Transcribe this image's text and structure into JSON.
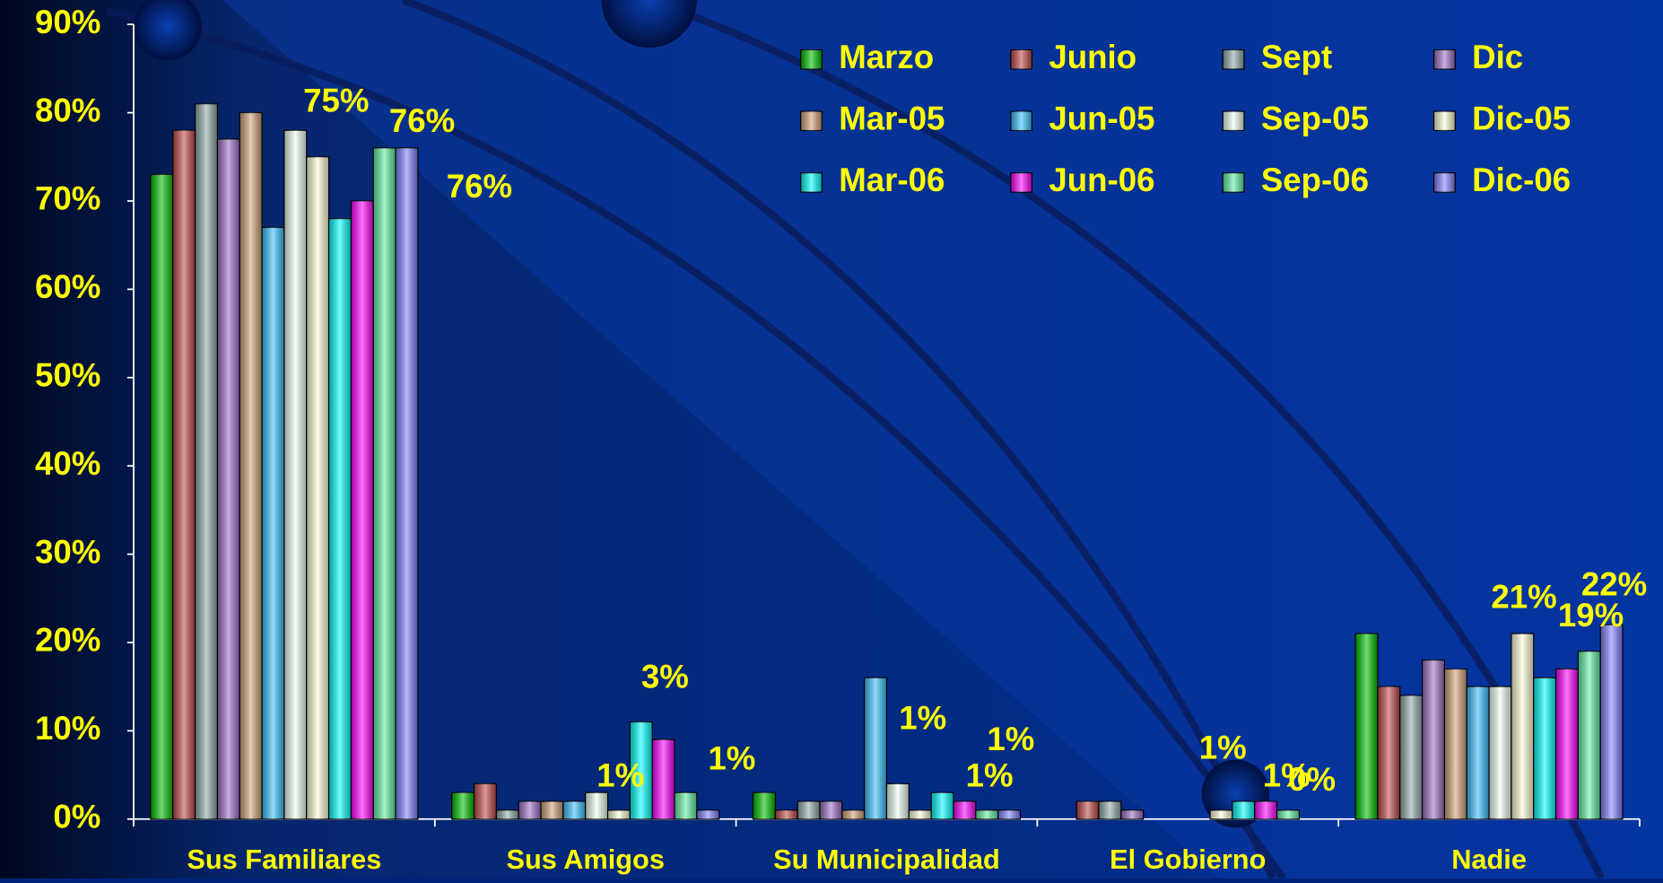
{
  "chart_data": {
    "type": "bar",
    "categories": [
      "Sus Familiares",
      "Sus Amigos",
      "Su Municipalidad",
      "El Gobierno",
      "Nadie"
    ],
    "series": [
      {
        "name": "Marzo",
        "color": "#00c000",
        "values": [
          73,
          3,
          3,
          0,
          21
        ]
      },
      {
        "name": "Junio",
        "color": "#c04848",
        "values": [
          78,
          4,
          1,
          2,
          15
        ]
      },
      {
        "name": "Sept",
        "color": "#90aaaa",
        "values": [
          81,
          1,
          2,
          2,
          14
        ]
      },
      {
        "name": "Dic",
        "color": "#9a70c8",
        "values": [
          77,
          2,
          2,
          1,
          18
        ]
      },
      {
        "name": "Mar-05",
        "color": "#d0a078",
        "values": [
          80,
          2,
          1,
          0,
          17
        ]
      },
      {
        "name": "Jun-05",
        "color": "#38c0ff",
        "values": [
          67,
          2,
          16,
          0,
          15
        ]
      },
      {
        "name": "Sep-05",
        "color": "#f0fff0",
        "values": [
          78,
          3,
          4,
          0,
          15
        ]
      },
      {
        "name": "Dic-05",
        "color": "#ffffd8",
        "values": [
          75,
          1,
          1,
          1,
          21
        ]
      },
      {
        "name": "Mar-06",
        "color": "#00ffff",
        "values": [
          68,
          11,
          3,
          2,
          16
        ]
      },
      {
        "name": "Jun-06",
        "color": "#ff00ff",
        "values": [
          70,
          9,
          2,
          2,
          17
        ]
      },
      {
        "name": "Sep-06",
        "color": "#60f0a0",
        "values": [
          76,
          3,
          1,
          1,
          19
        ]
      },
      {
        "name": "Dic-06",
        "color": "#8080ff",
        "values": [
          76,
          1,
          1,
          0,
          22
        ]
      }
    ],
    "ylim": [
      0,
      90
    ],
    "yticks": [
      {
        "value": 0,
        "label": "0%"
      },
      {
        "value": 10,
        "label": "10%"
      },
      {
        "value": 20,
        "label": "20%"
      },
      {
        "value": 30,
        "label": "30%"
      },
      {
        "value": 40,
        "label": "40%"
      },
      {
        "value": 50,
        "label": "50%"
      },
      {
        "value": 60,
        "label": "60%"
      },
      {
        "value": 70,
        "label": "70%"
      },
      {
        "value": 80,
        "label": "80%"
      },
      {
        "value": 90,
        "label": "90%"
      }
    ],
    "annotations": [
      "75%",
      "76%",
      "76%",
      "3%",
      "1%",
      "1%",
      "1%",
      "1%",
      "1%",
      "1%",
      "1%",
      "0%",
      "21%",
      "22%",
      "19%"
    ],
    "legend": "top-right"
  }
}
